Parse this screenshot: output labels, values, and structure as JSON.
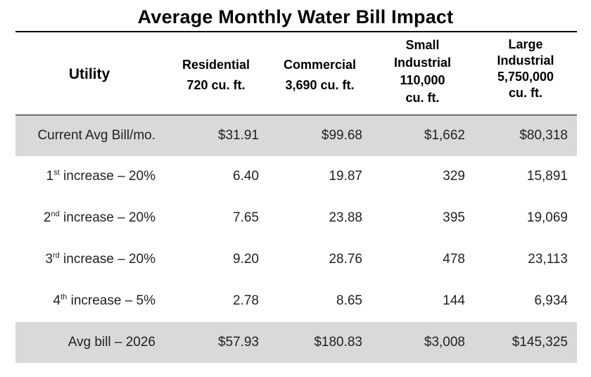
{
  "title": "Average Monthly Water Bill Impact",
  "headers": {
    "utility": "Utility",
    "residential": [
      "Residential",
      "720 cu. ft."
    ],
    "commercial": [
      "Commercial",
      "3,690 cu. ft."
    ],
    "small_industrial": [
      "Small",
      "Industrial",
      "110,000",
      "cu. ft."
    ],
    "large_industrial": [
      "Large",
      "Industrial",
      "5,750,000",
      "cu. ft."
    ]
  },
  "rows": [
    {
      "label": "Current Avg Bill/mo.",
      "ordinal": "",
      "suffix": "",
      "values": [
        "$31.91",
        "$99.68",
        "$1,662",
        "$80,318"
      ]
    },
    {
      "label": "1",
      "ordinal": "st",
      "suffix": " increase – 20%",
      "values": [
        "6.40",
        "19.87",
        "329",
        "15,891"
      ]
    },
    {
      "label": "2",
      "ordinal": "nd",
      "suffix": " increase – 20%",
      "values": [
        "7.65",
        "23.88",
        "395",
        "19,069"
      ]
    },
    {
      "label": "3",
      "ordinal": "rd",
      "suffix": " increase – 20%",
      "values": [
        "9.20",
        "28.76",
        "478",
        "23,113"
      ]
    },
    {
      "label": "4",
      "ordinal": "th",
      "suffix": " increase – 5%",
      "values": [
        "2.78",
        "8.65",
        "144",
        "6,934"
      ]
    },
    {
      "label": "Avg bill – 2026",
      "ordinal": "",
      "suffix": "",
      "values": [
        "$57.93",
        "$180.83",
        "$3,008",
        "$145,325"
      ]
    }
  ],
  "colors": {
    "shade": "#d9d9d9",
    "text": "#222222"
  }
}
